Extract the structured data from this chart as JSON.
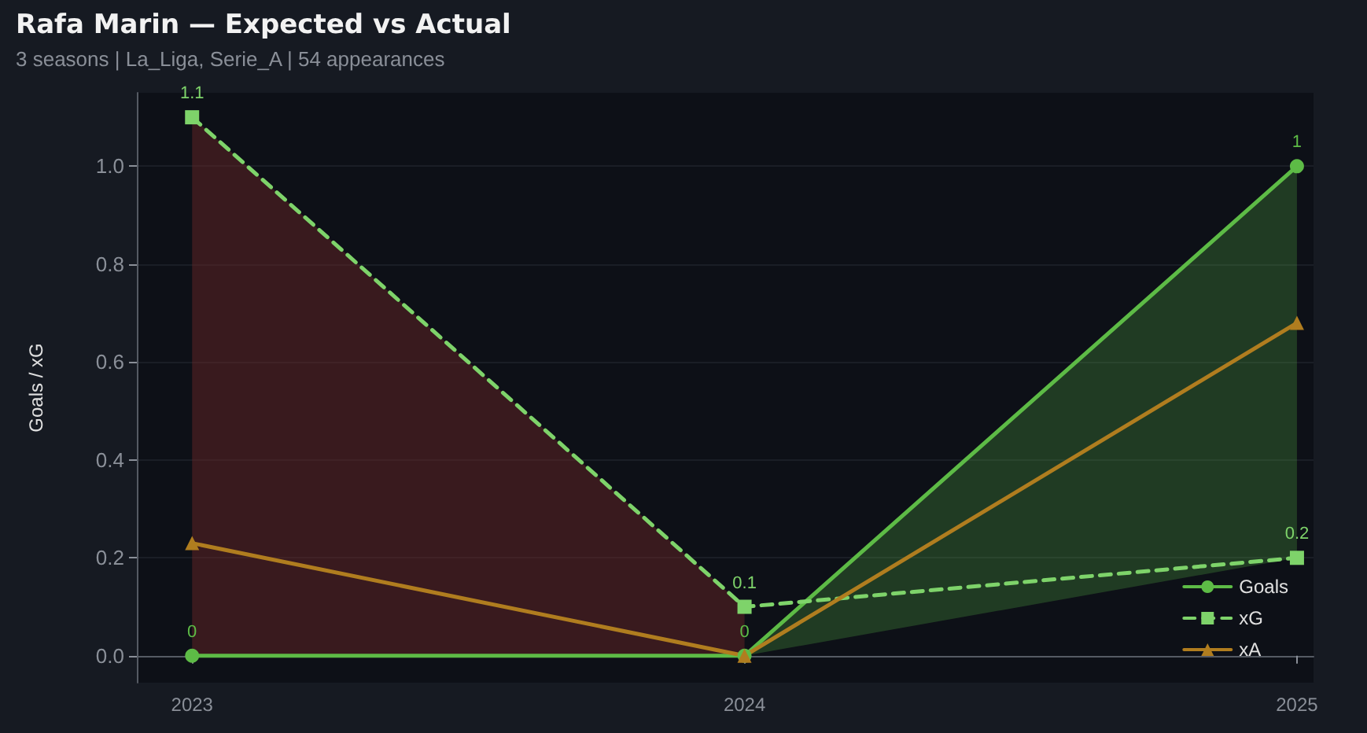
{
  "chart_data": {
    "type": "line",
    "title": "Rafa Marin — Expected vs Actual",
    "subtitle": "3 seasons | La_Liga, Serie_A | 54 appearances",
    "ylabel": "Goals / xG",
    "x": [
      2023,
      2024,
      2025
    ],
    "xlim": [
      2022.9,
      2025.03
    ],
    "xticks": [
      2023,
      2024,
      2025
    ],
    "ylim": [
      -0.055,
      1.15
    ],
    "yticks": [
      {
        "value": 0,
        "label": "0.0"
      },
      {
        "value": 0.2,
        "label": "0.2"
      },
      {
        "value": 0.4,
        "label": "0.4"
      },
      {
        "value": 0.6,
        "label": "0.6"
      },
      {
        "value": 0.8,
        "label": "0.8"
      },
      {
        "value": 1,
        "label": "1.0"
      }
    ],
    "series": [
      {
        "name": "Goals",
        "color": "#5dbb46",
        "values": [
          0,
          0,
          1
        ],
        "lower": [
          null,
          0,
          0.2
        ],
        "upper": [
          null,
          0,
          1
        ],
        "marker": "circle",
        "line_style": "solid",
        "value_labels": [
          "0",
          "0",
          "1"
        ]
      },
      {
        "name": "xG",
        "color": "#7ed36a",
        "values": [
          1.1,
          0.1,
          0.2
        ],
        "lower": [
          0,
          0,
          null
        ],
        "upper": [
          1.1,
          0.1,
          null
        ],
        "marker": "square",
        "line_style": "dashed",
        "value_labels": [
          "1.1",
          "0.1",
          "0.2"
        ]
      },
      {
        "name": "xA",
        "color": "#b07d1f",
        "values": [
          0.23,
          0,
          0.68
        ],
        "marker": "triangle",
        "line_style": "solid"
      }
    ],
    "grid": "y",
    "legend": "bottom right"
  }
}
